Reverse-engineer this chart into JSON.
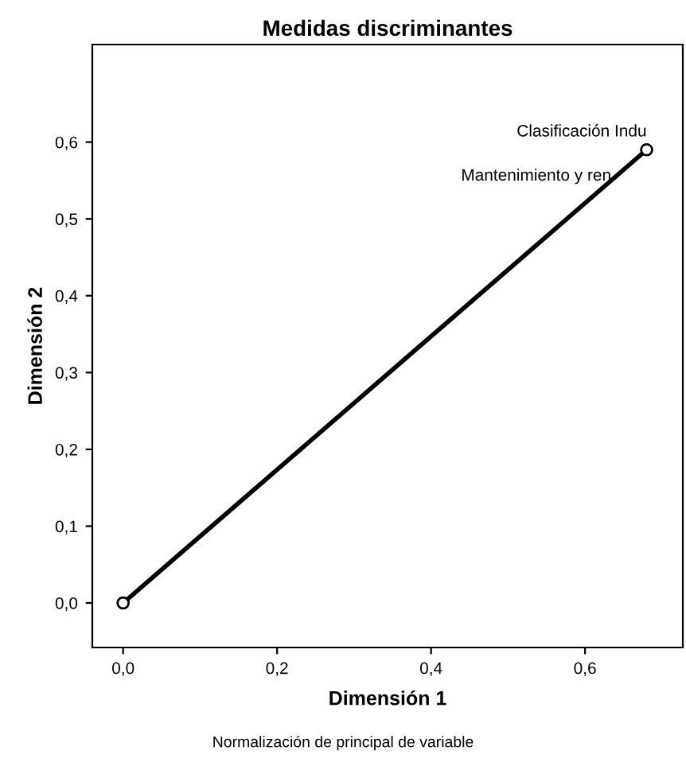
{
  "chart_data": {
    "type": "line",
    "title": "Medidas discriminantes",
    "xlabel": "Dimensión 1",
    "ylabel": "Dimensión 2",
    "x": [
      0.0,
      0.68
    ],
    "series": [
      {
        "color": "#000000",
        "values": [
          0.0,
          0.59
        ]
      }
    ],
    "marker": "circle",
    "line_style": "solid",
    "grid": false,
    "legend": false,
    "xlim": [
      -0.04,
      0.727
    ],
    "ylim": [
      -0.058,
      0.727
    ],
    "xticks": [
      {
        "value": 0.0,
        "label": "0,0"
      },
      {
        "value": 0.2,
        "label": "0,2"
      },
      {
        "value": 0.4,
        "label": "0,4"
      },
      {
        "value": 0.6,
        "label": "0,6"
      }
    ],
    "yticks": [
      {
        "value": 0.0,
        "label": "0,0"
      },
      {
        "value": 0.1,
        "label": "0,1"
      },
      {
        "value": 0.2,
        "label": "0,2"
      },
      {
        "value": 0.3,
        "label": "0,3"
      },
      {
        "value": 0.4,
        "label": "0,4"
      },
      {
        "value": 0.5,
        "label": "0,5"
      },
      {
        "value": 0.6,
        "label": "0,6"
      }
    ],
    "annotations": [
      {
        "text": "Clasificación Indu",
        "x": 0.68,
        "y": 0.59
      },
      {
        "text": "Mantenimiento y ren",
        "x": 0.68,
        "y": 0.59
      },
      "Normalización de principal de variable"
    ]
  }
}
